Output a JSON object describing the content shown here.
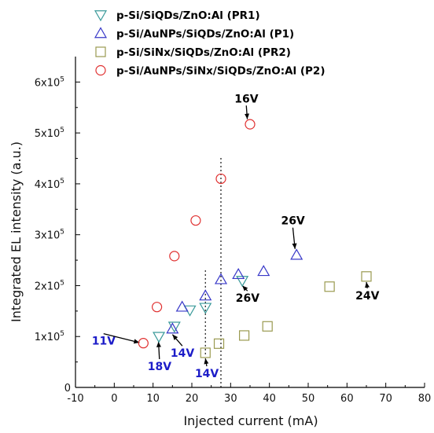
{
  "chart_data": {
    "type": "scatter",
    "xlabel": "Injected current (mA)",
    "ylabel": "Integrated EL intensity (a.u.)",
    "xlim": [
      -10,
      80
    ],
    "ylim": [
      0,
      650000
    ],
    "x_ticks": [
      -10,
      0,
      10,
      20,
      30,
      40,
      50,
      60,
      70,
      80
    ],
    "y_ticks": [
      {
        "value": 0,
        "label": "0"
      },
      {
        "value": 100000,
        "label": "1x10",
        "exp": "5"
      },
      {
        "value": 200000,
        "label": "2x10",
        "exp": "5"
      },
      {
        "value": 300000,
        "label": "3x10",
        "exp": "5"
      },
      {
        "value": 400000,
        "label": "4x10",
        "exp": "5"
      },
      {
        "value": 500000,
        "label": "5x10",
        "exp": "5"
      },
      {
        "value": 600000,
        "label": "6x10",
        "exp": "5"
      }
    ],
    "legend_position": "top",
    "grid": false,
    "series": [
      {
        "name": "p-Si/SiQDs/ZnO:Al (PR1)",
        "marker": "triangle-down",
        "color": "#3a9a9a",
        "points": [
          [
            11.5,
            100000
          ],
          [
            15.5,
            120000
          ],
          [
            19.5,
            152000
          ],
          [
            23.5,
            157000
          ],
          [
            33,
            210000
          ]
        ]
      },
      {
        "name": "p-Si/AuNPs/SiQDs/ZnO:Al (P1)",
        "marker": "triangle-up",
        "color": "#3838c8",
        "points": [
          [
            15,
            115000
          ],
          [
            17.5,
            158000
          ],
          [
            23.5,
            180000
          ],
          [
            27.5,
            212000
          ],
          [
            32,
            222000
          ],
          [
            38.5,
            228000
          ],
          [
            47,
            260000
          ]
        ]
      },
      {
        "name": "p-Si/SiNx/SiQDs/ZnO:Al (PR2)",
        "marker": "square",
        "color": "#9a9a50",
        "points": [
          [
            23.5,
            68000
          ],
          [
            27,
            86000
          ],
          [
            33.5,
            102000
          ],
          [
            39.5,
            120000
          ],
          [
            55.5,
            198000
          ],
          [
            65,
            218000
          ]
        ]
      },
      {
        "name": "p-Si/AuNPs/SiNx/SiQDs/ZnO:Al (P2)",
        "marker": "circle",
        "color": "#e03030",
        "points": [
          [
            7.5,
            87000
          ],
          [
            11,
            158000
          ],
          [
            15.5,
            258000
          ],
          [
            21,
            328000
          ],
          [
            27.5,
            410000
          ],
          [
            35,
            517000
          ]
        ]
      }
    ],
    "annotations": [
      {
        "text": "16V",
        "color": "#000000",
        "x": 31,
        "y": 560000,
        "arrow_to": [
          34.3,
          527000
        ]
      },
      {
        "text": "26V",
        "color": "#000000",
        "x": 43,
        "y": 320000,
        "arrow_to": [
          46.6,
          272000
        ]
      },
      {
        "text": "26V",
        "color": "#000000",
        "x": 31.3,
        "y": 168000,
        "arrow_to": [
          33,
          200000
        ]
      },
      {
        "text": "24V",
        "color": "#000000",
        "x": 62.2,
        "y": 173000,
        "arrow_to": [
          65,
          207000
        ]
      },
      {
        "text": "11V",
        "color": "#1c1cc8",
        "x": -5.8,
        "y": 84000,
        "arrow_to": [
          6.5,
          88000
        ]
      },
      {
        "text": "18V",
        "color": "#1c1cc8",
        "x": 8.6,
        "y": 34000,
        "arrow_to": [
          11.4,
          90000
        ]
      },
      {
        "text": "14V",
        "color": "#1c1cc8",
        "x": 14.5,
        "y": 60000,
        "arrow_to": [
          15,
          104000
        ]
      },
      {
        "text": "14V",
        "color": "#1c1cc8",
        "x": 20.8,
        "y": 20000,
        "arrow_to": [
          23.5,
          57000
        ]
      }
    ],
    "reference_lines": [
      {
        "x": 23.5,
        "y1": 65000,
        "y2": 230000
      },
      {
        "x": 27.5,
        "y1": 0,
        "y2": 455000
      }
    ]
  }
}
